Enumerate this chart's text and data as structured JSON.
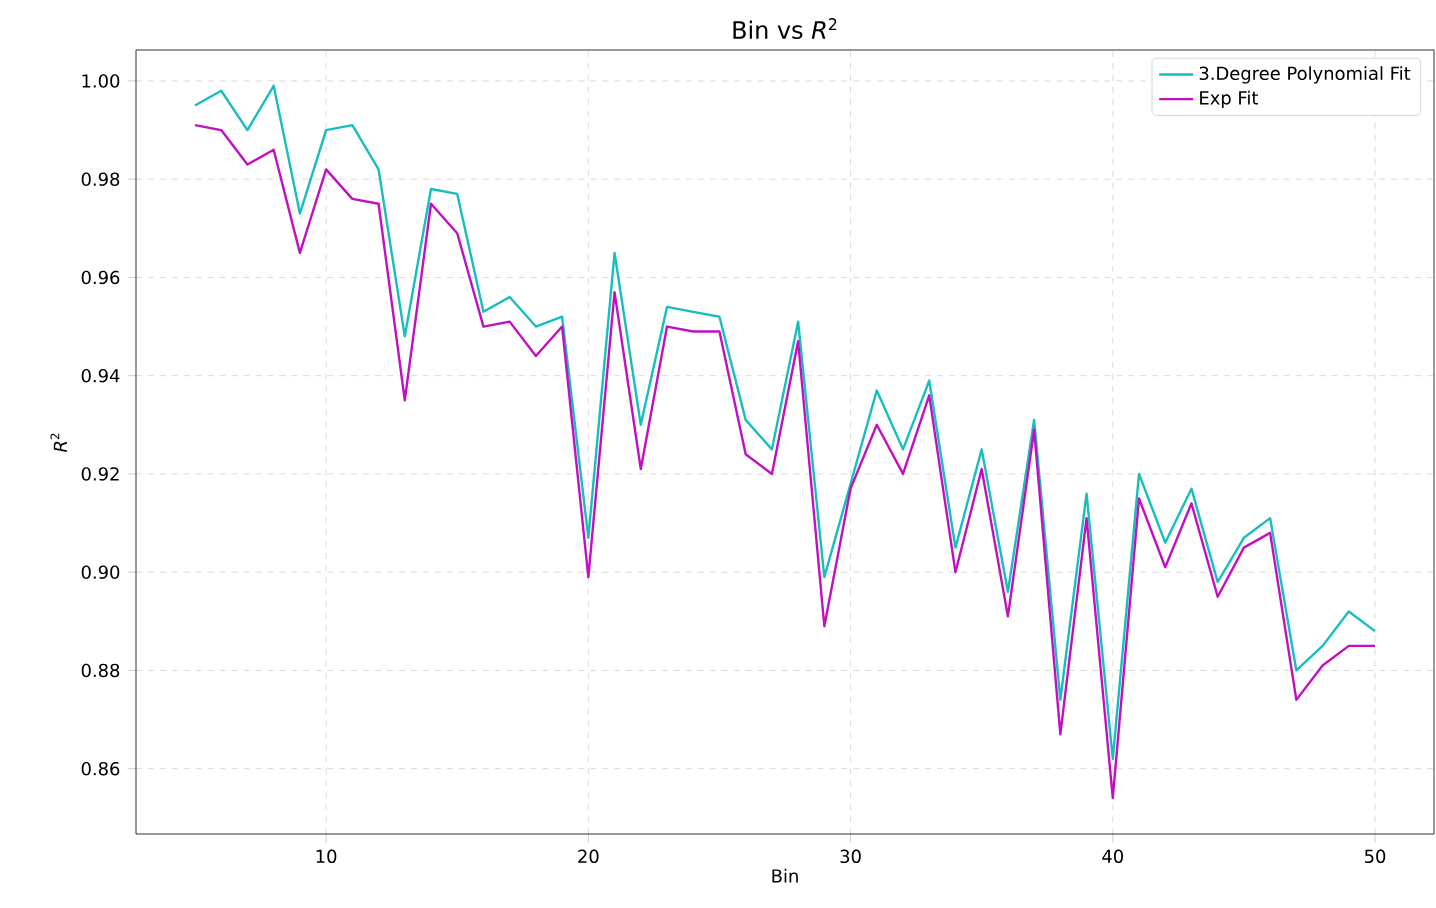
{
  "chart_data": {
    "type": "line",
    "title": "Bin vs *R*$^{2}$",
    "xlabel": "Bin",
    "ylabel": "*R*$^{2}$",
    "x": [
      5,
      6,
      7,
      8,
      9,
      10,
      11,
      12,
      13,
      14,
      15,
      16,
      17,
      18,
      19,
      20,
      21,
      22,
      23,
      24,
      25,
      26,
      27,
      28,
      29,
      30,
      31,
      32,
      33,
      34,
      35,
      36,
      37,
      38,
      39,
      40,
      41,
      42,
      43,
      44,
      45,
      46,
      47,
      48,
      49,
      50
    ],
    "series": [
      {
        "name": "3.Degree Polynomial Fit",
        "color": "#17bebb",
        "values": [
          0.995,
          0.998,
          0.99,
          0.999,
          0.973,
          0.99,
          0.991,
          0.982,
          0.948,
          0.978,
          0.977,
          0.953,
          0.956,
          0.95,
          0.952,
          0.907,
          0.965,
          0.93,
          0.954,
          0.953,
          0.952,
          0.931,
          0.925,
          0.951,
          0.899,
          0.918,
          0.937,
          0.925,
          0.939,
          0.905,
          0.925,
          0.896,
          0.931,
          0.874,
          0.916,
          0.862,
          0.92,
          0.906,
          0.917,
          0.898,
          0.907,
          0.911,
          0.88,
          0.885,
          0.892,
          0.888
        ]
      },
      {
        "name": "Exp Fit",
        "color": "#c20fc2",
        "values": [
          0.991,
          0.99,
          0.983,
          0.986,
          0.965,
          0.982,
          0.976,
          0.975,
          0.935,
          0.975,
          0.969,
          0.95,
          0.951,
          0.944,
          0.95,
          0.899,
          0.957,
          0.921,
          0.95,
          0.949,
          0.949,
          0.924,
          0.92,
          0.947,
          0.889,
          0.917,
          0.93,
          0.92,
          0.936,
          0.9,
          0.921,
          0.891,
          0.929,
          0.867,
          0.911,
          0.854,
          0.915,
          0.901,
          0.914,
          0.895,
          0.905,
          0.908,
          0.874,
          0.881,
          0.885,
          0.885
        ]
      }
    ],
    "xlim": [
      2.75,
      52.25
    ],
    "ylim": [
      0.8467,
      1.0063
    ],
    "xticks": [
      10,
      20,
      30,
      40,
      50
    ],
    "yticks": [
      {
        "value": 0.86,
        "label": "0.86"
      },
      {
        "value": 0.88,
        "label": "0.88"
      },
      {
        "value": 0.9,
        "label": "0.90"
      },
      {
        "value": 0.92,
        "label": "0.92"
      },
      {
        "value": 0.94,
        "label": "0.94"
      },
      {
        "value": 0.96,
        "label": "0.96"
      },
      {
        "value": 0.98,
        "label": "0.98"
      },
      {
        "value": 1.0,
        "label": "1.00"
      }
    ],
    "grid": true,
    "legend": "top right",
    "marker": "none",
    "line_style": "solid"
  }
}
